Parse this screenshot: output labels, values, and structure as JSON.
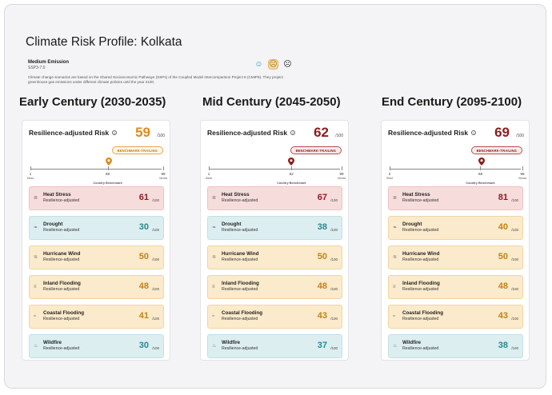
{
  "page": {
    "title": "Climate Risk Profile: Kolkata",
    "scenario_name": "Medium Emission",
    "scenario_code": "SSP3-7.0",
    "scenario_desc": "Climate change scenarios are based on the Shared Socioeconomic Pathways (SSPs) of the Coupled Model Intercomparison Project 6 (CMIP6). They project greenhouse gas emissions under different climate policies until the year 2100.",
    "face_icons": [
      "low-emission-face-icon",
      "medium-emission-face-icon",
      "high-emission-face-icon"
    ],
    "selected_face": "medium"
  },
  "columns": [
    {
      "period": "Early Century (2030-2035)",
      "risk_label": "Resilience-adjusted Risk",
      "score": "59",
      "score_unit": "/100",
      "score_color": "#e08a1a",
      "bench_label": "BENCHMARK-TRAILING",
      "bench_style": "orange",
      "scale_min": "1",
      "scale_min_label": "Best",
      "scale_bench": "58",
      "scale_bench_label": "Country Benchmark",
      "scale_max": "99",
      "scale_max_label": "Worst",
      "pin_value": 59,
      "bench_value": 58,
      "hazards": [
        {
          "name": "Heat Stress",
          "sub": "Resilience-adjusted",
          "score": "61",
          "unit": "/100",
          "level": "red"
        },
        {
          "name": "Drought",
          "sub": "Resilience-adjusted",
          "score": "30",
          "unit": "/100",
          "level": "teal"
        },
        {
          "name": "Hurricane Wind",
          "sub": "Resilience-adjusted",
          "score": "50",
          "unit": "/100",
          "level": "amber"
        },
        {
          "name": "Inland Flooding",
          "sub": "Resilience-adjusted",
          "score": "48",
          "unit": "/100",
          "level": "amber"
        },
        {
          "name": "Coastal Flooding",
          "sub": "Resilience-adjusted",
          "score": "41",
          "unit": "/100",
          "level": "amber"
        },
        {
          "name": "Wildfire",
          "sub": "Resilience-adjusted",
          "score": "30",
          "unit": "/100",
          "level": "teal"
        }
      ]
    },
    {
      "period": "Mid Century (2045-2050)",
      "risk_label": "Resilience-adjusted Risk",
      "score": "62",
      "score_unit": "/100",
      "score_color": "#8c1c1c",
      "bench_label": "BENCHMARK-TRAILING",
      "bench_style": "red",
      "scale_min": "1",
      "scale_min_label": "Best",
      "scale_bench": "62",
      "scale_bench_label": "Country Benchmark",
      "scale_max": "99",
      "scale_max_label": "Worst",
      "pin_value": 62,
      "bench_value": 62,
      "hazards": [
        {
          "name": "Heat Stress",
          "sub": "Resilience-adjusted",
          "score": "67",
          "unit": "/100",
          "level": "red"
        },
        {
          "name": "Drought",
          "sub": "Resilience-adjusted",
          "score": "38",
          "unit": "/100",
          "level": "teal"
        },
        {
          "name": "Hurricane Wind",
          "sub": "Resilience-adjusted",
          "score": "50",
          "unit": "/100",
          "level": "amber"
        },
        {
          "name": "Inland Flooding",
          "sub": "Resilience-adjusted",
          "score": "48",
          "unit": "/100",
          "level": "amber"
        },
        {
          "name": "Coastal Flooding",
          "sub": "Resilience-adjusted",
          "score": "43",
          "unit": "/100",
          "level": "amber"
        },
        {
          "name": "Wildfire",
          "sub": "Resilience-adjusted",
          "score": "37",
          "unit": "/100",
          "level": "teal"
        }
      ]
    },
    {
      "period": "End Century (2095-2100)",
      "risk_label": "Resilience-adjusted Risk",
      "score": "69",
      "score_unit": "/100",
      "score_color": "#8c1c1c",
      "bench_label": "BENCHMARK-TRAILING",
      "bench_style": "red",
      "scale_min": "2",
      "scale_min_label": "Best",
      "scale_bench": "68",
      "scale_bench_label": "Country Benchmark",
      "scale_max": "99",
      "scale_max_label": "Worst",
      "pin_value": 69,
      "bench_value": 68,
      "hazards": [
        {
          "name": "Heat Stress",
          "sub": "Resilience-adjusted",
          "score": "81",
          "unit": "/100",
          "level": "red"
        },
        {
          "name": "Drought",
          "sub": "Resilience-adjusted",
          "score": "40",
          "unit": "/100",
          "level": "amber"
        },
        {
          "name": "Hurricane Wind",
          "sub": "Resilience-adjusted",
          "score": "50",
          "unit": "/100",
          "level": "amber"
        },
        {
          "name": "Inland Flooding",
          "sub": "Resilience-adjusted",
          "score": "48",
          "unit": "/100",
          "level": "amber"
        },
        {
          "name": "Coastal Flooding",
          "sub": "Resilience-adjusted",
          "score": "43",
          "unit": "/100",
          "level": "amber"
        },
        {
          "name": "Wildfire",
          "sub": "Resilience-adjusted",
          "score": "38",
          "unit": "/100",
          "level": "teal"
        }
      ]
    }
  ],
  "hazard_icons": [
    "thermometer-icon",
    "drought-leaf-icon",
    "wind-icon",
    "inland-flood-icon",
    "coastal-wave-icon",
    "fire-icon"
  ]
}
